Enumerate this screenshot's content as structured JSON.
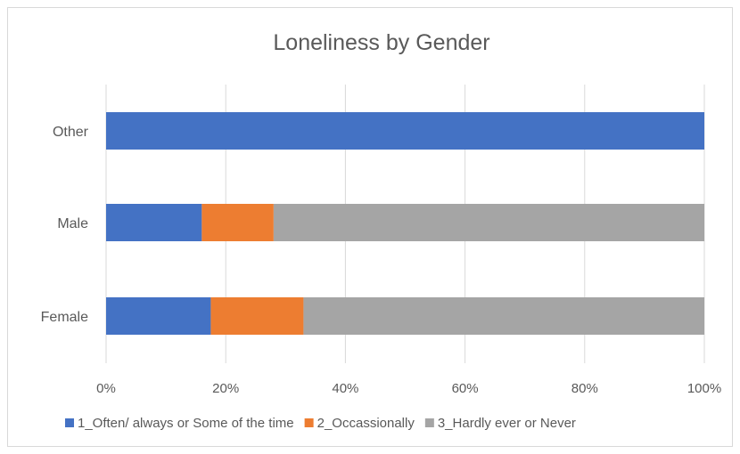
{
  "chart_data": {
    "type": "bar",
    "orientation": "horizontal",
    "stacked": "percent",
    "title": "Loneliness by Gender",
    "categories": [
      "Other",
      "Male",
      "Female"
    ],
    "series": [
      {
        "name": "1_Often/ always or Some of the time",
        "color": "#4472C4",
        "values": [
          100,
          16,
          17.5
        ]
      },
      {
        "name": "2_Occassionally",
        "color": "#ED7D31",
        "values": [
          0,
          12,
          15.5
        ]
      },
      {
        "name": "3_Hardly ever or Never",
        "color": "#A5A5A5",
        "values": [
          0,
          72,
          67
        ]
      }
    ],
    "xlim": [
      0,
      100
    ],
    "x_ticks": [
      "0%",
      "20%",
      "40%",
      "60%",
      "80%",
      "100%"
    ],
    "grid": "vertical",
    "legend_position": "bottom"
  }
}
